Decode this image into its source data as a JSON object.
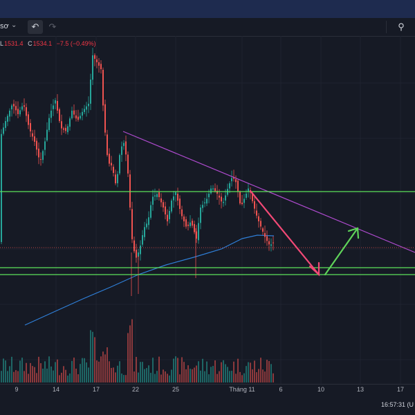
{
  "toolbar": {
    "symbol_fragment": "sơ",
    "undo_icon": "undo-icon",
    "redo_icon": "redo-icon",
    "search_icon": "zoom-search-icon"
  },
  "legend": {
    "low_key": "L",
    "low_value": "1531.4",
    "close_key": "C",
    "close_value": "1534.1",
    "change": "−7.5 (−0.49%)"
  },
  "x_ticks": [
    "9",
    "14",
    "17",
    "22",
    "25",
    "Tháng 11",
    "6",
    "10",
    "13",
    "17"
  ],
  "clock": "16:57:31 (U",
  "colors": {
    "background": "#161a25",
    "up": "#26a69a",
    "down": "#ef5350",
    "trendline": "#b04bd0",
    "support": "#5ee35a",
    "moving_average": "#2f7fd8",
    "arrow_down": "#f24976",
    "arrow_up": "#5fd35a"
  },
  "chart_data": {
    "type": "candlestick",
    "indicators": [
      "volume",
      "moving-average"
    ],
    "last_close": 1534.1,
    "last_low": 1531.4,
    "last_change": -7.5,
    "last_change_pct": -0.49,
    "drawings": [
      "descending-trendline",
      "horizontal-resistance",
      "horizontal-support",
      "projection-arrow-down",
      "projection-arrow-up"
    ]
  }
}
